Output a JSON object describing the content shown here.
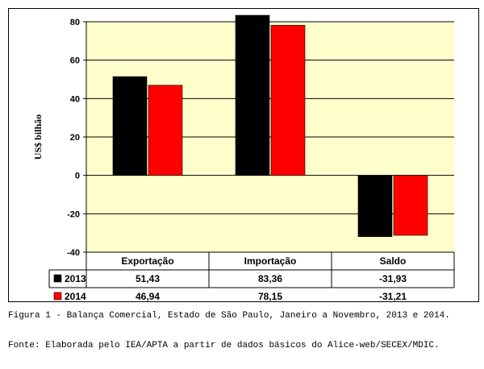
{
  "chart_data": {
    "type": "bar",
    "categories": [
      "Exportação",
      "Importação",
      "Saldo"
    ],
    "series": [
      {
        "name": "2013",
        "values": [
          51.43,
          83.36,
          -31.93
        ],
        "labels": [
          "51,43",
          "83,36",
          "-31,93"
        ],
        "color": "#000000"
      },
      {
        "name": "2014",
        "values": [
          46.94,
          78.15,
          -31.21
        ],
        "labels": [
          "46,94",
          "78,15",
          "-31,21"
        ],
        "color": "#ff0000"
      }
    ],
    "ylabel": "US$ bilhão",
    "ylim": [
      -40,
      80
    ],
    "yticks": [
      -40,
      -20,
      0,
      20,
      40,
      60,
      80
    ],
    "ytick_labels": [
      "-40",
      "-20",
      "0",
      "20",
      "40",
      "60",
      "80"
    ],
    "grid": true,
    "legend": "data table below chart",
    "plot_background": "#ffffcc"
  },
  "caption": {
    "figure": "Figura 1 - Balança Comercial, Estado de São Paulo, Janeiro a Novembro, 2013 e 2014.",
    "source": "Fonte: Elaborada pelo IEA/APTA a partir de dados básicos do Alice-web/SECEX/MDIC."
  }
}
